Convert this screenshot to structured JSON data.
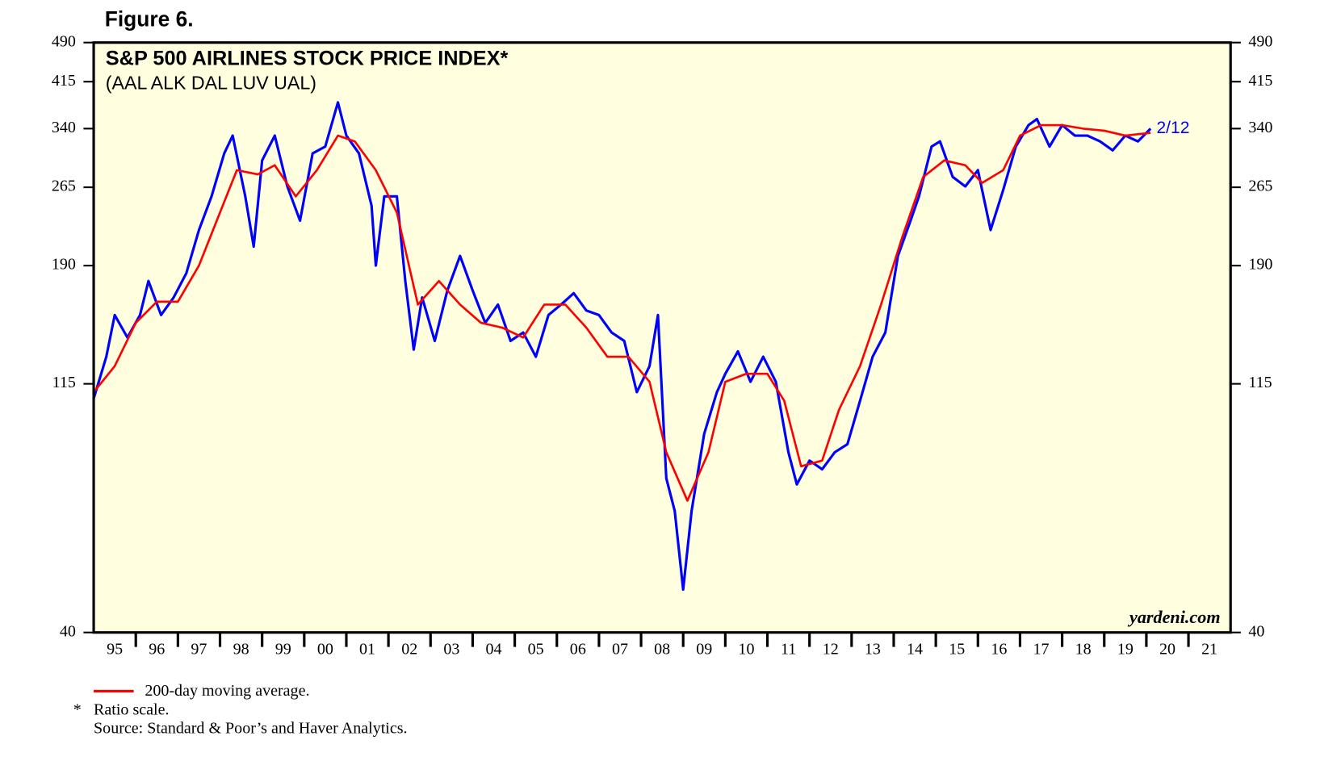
{
  "header": {
    "title": "Figure 6."
  },
  "chart_data": {
    "type": "line",
    "title": "S&P 500 AIRLINES STOCK PRICE INDEX*",
    "subtitle": "(AAL ALK DAL LUV UAL)",
    "annotations": [
      "2/12",
      "yardeni.com"
    ],
    "log_scale": true,
    "ylim": [
      40,
      490
    ],
    "yticks": [
      40,
      115,
      190,
      265,
      340,
      415,
      490
    ],
    "xlim": [
      1995,
      2022
    ],
    "xticks": [
      {
        "value": 1995,
        "label": "95"
      },
      {
        "value": 1996,
        "label": "96"
      },
      {
        "value": 1997,
        "label": "97"
      },
      {
        "value": 1998,
        "label": "98"
      },
      {
        "value": 1999,
        "label": "99"
      },
      {
        "value": 2000,
        "label": "00"
      },
      {
        "value": 2001,
        "label": "01"
      },
      {
        "value": 2002,
        "label": "02"
      },
      {
        "value": 2003,
        "label": "03"
      },
      {
        "value": 2004,
        "label": "04"
      },
      {
        "value": 2005,
        "label": "05"
      },
      {
        "value": 2006,
        "label": "06"
      },
      {
        "value": 2007,
        "label": "07"
      },
      {
        "value": 2008,
        "label": "08"
      },
      {
        "value": 2009,
        "label": "09"
      },
      {
        "value": 2010,
        "label": "10"
      },
      {
        "value": 2011,
        "label": "11"
      },
      {
        "value": 2012,
        "label": "12"
      },
      {
        "value": 2013,
        "label": "13"
      },
      {
        "value": 2014,
        "label": "14"
      },
      {
        "value": 2015,
        "label": "15"
      },
      {
        "value": 2016,
        "label": "16"
      },
      {
        "value": 2017,
        "label": "17"
      },
      {
        "value": 2018,
        "label": "18"
      },
      {
        "value": 2019,
        "label": "19"
      },
      {
        "value": 2020,
        "label": "20"
      },
      {
        "value": 2021,
        "label": "21"
      }
    ],
    "series": [
      {
        "color": "#0000ff",
        "x": [
          1995.0,
          1995.3,
          1995.5,
          1995.8,
          1996.1,
          1996.3,
          1996.6,
          1996.9,
          1997.2,
          1997.5,
          1997.8,
          1998.1,
          1998.3,
          1998.6,
          1998.8,
          1999.0,
          1999.3,
          1999.6,
          1999.9,
          2000.2,
          2000.5,
          2000.8,
          2001.0,
          2001.3,
          2001.6,
          2001.7,
          2001.9,
          2002.2,
          2002.4,
          2002.6,
          2002.8,
          2003.1,
          2003.4,
          2003.7,
          2004.0,
          2004.3,
          2004.6,
          2004.9,
          2005.2,
          2005.5,
          2005.8,
          2006.1,
          2006.4,
          2006.7,
          2007.0,
          2007.3,
          2007.6,
          2007.9,
          2008.2,
          2008.4,
          2008.6,
          2008.8,
          2009.0,
          2009.2,
          2009.5,
          2009.8,
          2010.0,
          2010.3,
          2010.6,
          2010.9,
          2011.2,
          2011.5,
          2011.7,
          2012.0,
          2012.3,
          2012.6,
          2012.9,
          2013.2,
          2013.5,
          2013.8,
          2014.1,
          2014.4,
          2014.6,
          2014.9,
          2015.1,
          2015.4,
          2015.7,
          2016.0,
          2016.3,
          2016.6,
          2016.9,
          2017.2,
          2017.4,
          2017.7,
          2018.0,
          2018.3,
          2018.6,
          2018.9,
          2019.2,
          2019.5,
          2019.8,
          2020.1
        ],
        "values": [
          108,
          129,
          154,
          140,
          154,
          178,
          154,
          166,
          184,
          221,
          255,
          306,
          330,
          255,
          206,
          297,
          330,
          266,
          230,
          306,
          315,
          380,
          330,
          306,
          245,
          190,
          255,
          255,
          178,
          133,
          166,
          138,
          171,
          198,
          171,
          149,
          161,
          138,
          143,
          129,
          154,
          161,
          169,
          157,
          154,
          143,
          138,
          111,
          124,
          154,
          77,
          67,
          48,
          67,
          93,
          111,
          120,
          132,
          116,
          129,
          116,
          86,
          75,
          83,
          80,
          86,
          89,
          107,
          129,
          143,
          198,
          230,
          255,
          315,
          322,
          277,
          266,
          285,
          221,
          262,
          315,
          345,
          354,
          315,
          345,
          330,
          330,
          322,
          310,
          330,
          322,
          340
        ]
      },
      {
        "name": "200-day moving average.",
        "color": "#ff0000",
        "x": [
          1995.0,
          1995.5,
          1996.0,
          1996.5,
          1997.0,
          1997.5,
          1998.0,
          1998.4,
          1998.9,
          1999.3,
          1999.8,
          2000.3,
          2000.8,
          2001.2,
          2001.7,
          2002.2,
          2002.7,
          2003.2,
          2003.7,
          2004.2,
          2004.7,
          2005.2,
          2005.7,
          2006.2,
          2006.7,
          2007.2,
          2007.7,
          2008.2,
          2008.6,
          2009.1,
          2009.6,
          2010.0,
          2010.5,
          2011.0,
          2011.4,
          2011.8,
          2012.3,
          2012.7,
          2013.2,
          2013.7,
          2014.2,
          2014.7,
          2015.2,
          2015.7,
          2016.1,
          2016.6,
          2017.0,
          2017.5,
          2018.0,
          2018.5,
          2019.0,
          2019.5,
          2020.1
        ],
        "values": [
          111,
          124,
          149,
          163,
          163,
          190,
          238,
          285,
          280,
          291,
          255,
          285,
          330,
          322,
          285,
          238,
          161,
          178,
          161,
          149,
          146,
          140,
          161,
          161,
          146,
          129,
          129,
          116,
          86,
          70,
          86,
          116,
          120,
          120,
          107,
          81,
          83,
          103,
          124,
          161,
          214,
          277,
          297,
          291,
          270,
          285,
          330,
          345,
          345,
          340,
          337,
          330,
          334
        ]
      }
    ],
    "notes": [
      "*",
      "Ratio scale.",
      "Source: Standard & Poor’s and Haver Analytics."
    ]
  }
}
